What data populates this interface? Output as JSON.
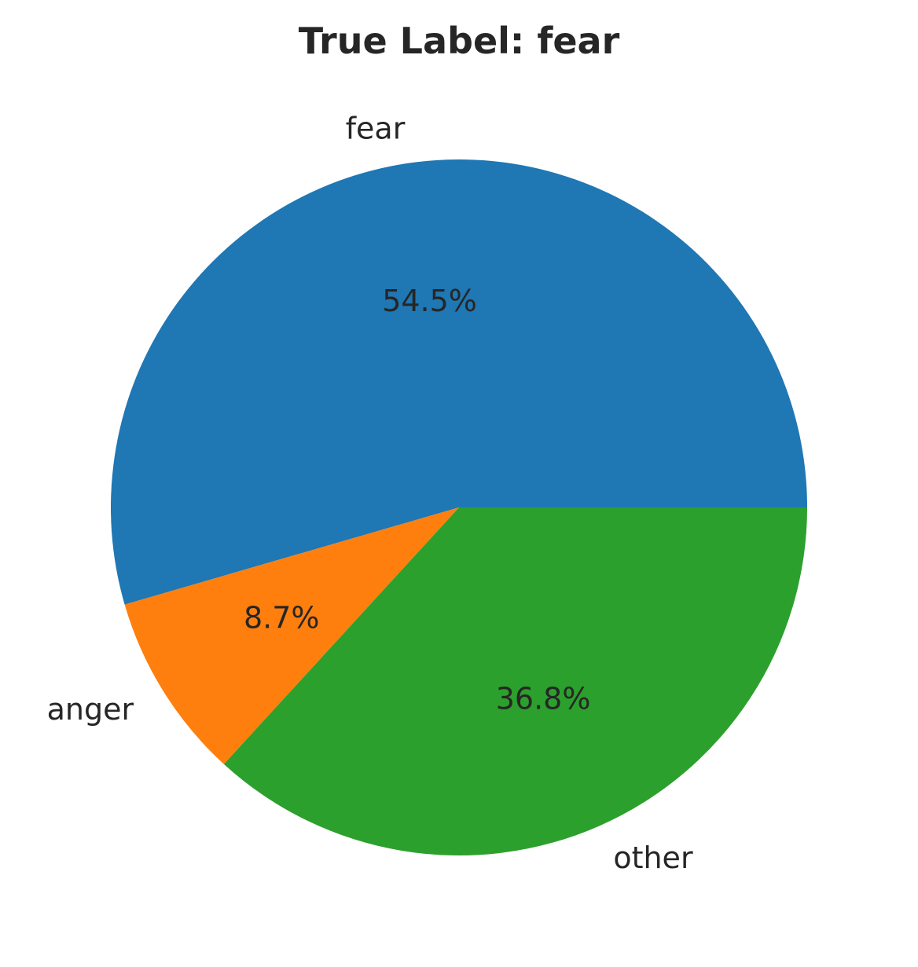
{
  "chart_data": {
    "type": "pie",
    "title": "True Label: fear",
    "start_angle_deg": 0,
    "direction": "counterclockwise",
    "slices": [
      {
        "label": "fear",
        "value": 54.5,
        "pct_label": "54.5%",
        "color": "#1f77b4"
      },
      {
        "label": "anger",
        "value": 8.7,
        "pct_label": "8.7%",
        "color": "#ff7f0e"
      },
      {
        "label": "other",
        "value": 36.8,
        "pct_label": "36.8%",
        "color": "#2ca02c"
      }
    ]
  }
}
